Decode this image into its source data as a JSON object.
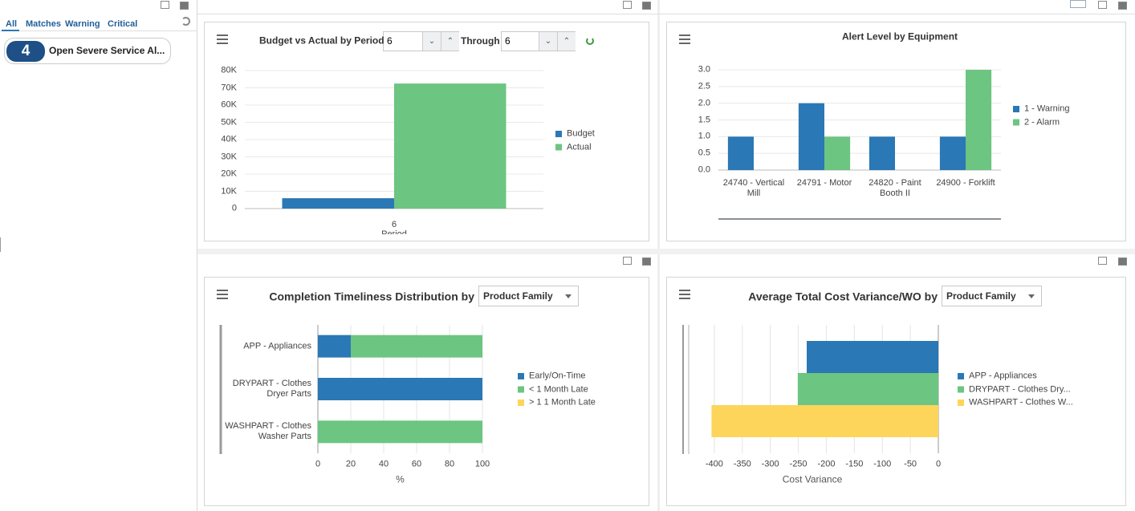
{
  "sidebar": {
    "tabs": [
      "All",
      "Matches",
      "Warning",
      "Critical"
    ],
    "alerts": [
      {
        "count": 4,
        "label": "Open Severe Service Al..."
      }
    ]
  },
  "chart_data": [
    {
      "type": "bar",
      "title": "Budget vs Actual by Period",
      "controls": {
        "from": "6",
        "through": "Through",
        "to": "6"
      },
      "categories": [
        "6"
      ],
      "x_label": "Period",
      "series": [
        {
          "name": "Budget",
          "color": "#2a78b5",
          "values": [
            6000
          ]
        },
        {
          "name": "Actual",
          "color": "#6cc581",
          "values": [
            72500
          ]
        }
      ],
      "ylim": [
        0,
        80000
      ],
      "yticks": [
        0,
        {
          "value": 10000,
          "label": "10K"
        },
        {
          "value": 20000,
          "label": "20K"
        },
        {
          "value": 30000,
          "label": "30K"
        },
        {
          "value": 40000,
          "label": "40K"
        },
        {
          "value": 50000,
          "label": "50K"
        },
        {
          "value": 60000,
          "label": "60K"
        },
        {
          "value": 70000,
          "label": "70K"
        },
        {
          "value": 80000,
          "label": "80K"
        }
      ],
      "grid": true,
      "legend": "right"
    },
    {
      "type": "bar",
      "title": "Alert Level by Equipment",
      "categories": [
        "24740 - Vertical Mill",
        "24791 - Motor",
        "24820 - Paint Booth II",
        "24900 - Forklift"
      ],
      "series": [
        {
          "name": "1 - Warning",
          "color": "#2a78b5",
          "values": [
            1,
            2,
            1,
            1
          ]
        },
        {
          "name": "2 - Alarm",
          "color": "#6cc581",
          "values": [
            0,
            1,
            0,
            3
          ]
        }
      ],
      "ylim": [
        0,
        3
      ],
      "yticks": [
        {
          "value": 0,
          "label": "0.0"
        },
        0.5,
        {
          "value": 1,
          "label": "1.0"
        },
        1.5,
        {
          "value": 2,
          "label": "2.0"
        },
        2.5,
        {
          "value": 3,
          "label": "3.0"
        }
      ],
      "grid": true,
      "legend": "right"
    },
    {
      "type": "barh",
      "stacked": true,
      "title": "Completion Timeliness Distribution by",
      "controls": {
        "group_by": "Product Family"
      },
      "categories": [
        "APP - Appliances",
        "DRYPART - Clothes Dryer Parts",
        "WASHPART - Clothes Washer Parts"
      ],
      "series": [
        {
          "name": "Early/On-Time",
          "color": "#2a78b5",
          "values": [
            20,
            100,
            0
          ]
        },
        {
          "name": "< 1 Month Late",
          "color": "#6cc581",
          "values": [
            80,
            0,
            100
          ]
        },
        {
          "name": "> 1 1 Month Late",
          "color": "#fdd55a",
          "values": [
            0,
            0,
            0
          ]
        }
      ],
      "xlim": [
        0,
        100
      ],
      "xticks": [
        0,
        20,
        40,
        60,
        80,
        100
      ],
      "x_label": "%",
      "grid": true,
      "legend": "right"
    },
    {
      "type": "barh",
      "stacked": false,
      "title": "Average Total Cost Variance/WO by",
      "controls": {
        "group_by": "Product Family"
      },
      "series": [
        {
          "name": "APP - Appliances",
          "color": "#2a78b5",
          "values": [
            -235
          ]
        },
        {
          "name": "DRYPART - Clothes Dry...",
          "color": "#6cc581",
          "values": [
            -251
          ]
        },
        {
          "name": "WASHPART - Clothes W...",
          "color": "#fdd55a",
          "values": [
            -405
          ]
        }
      ],
      "xlim": [
        -450,
        0
      ],
      "xticks": [
        -400,
        -350,
        -300,
        -250,
        -200,
        -150,
        -100,
        -50,
        0
      ],
      "x_label": "Cost Variance",
      "grid": true,
      "legend": "right"
    }
  ]
}
